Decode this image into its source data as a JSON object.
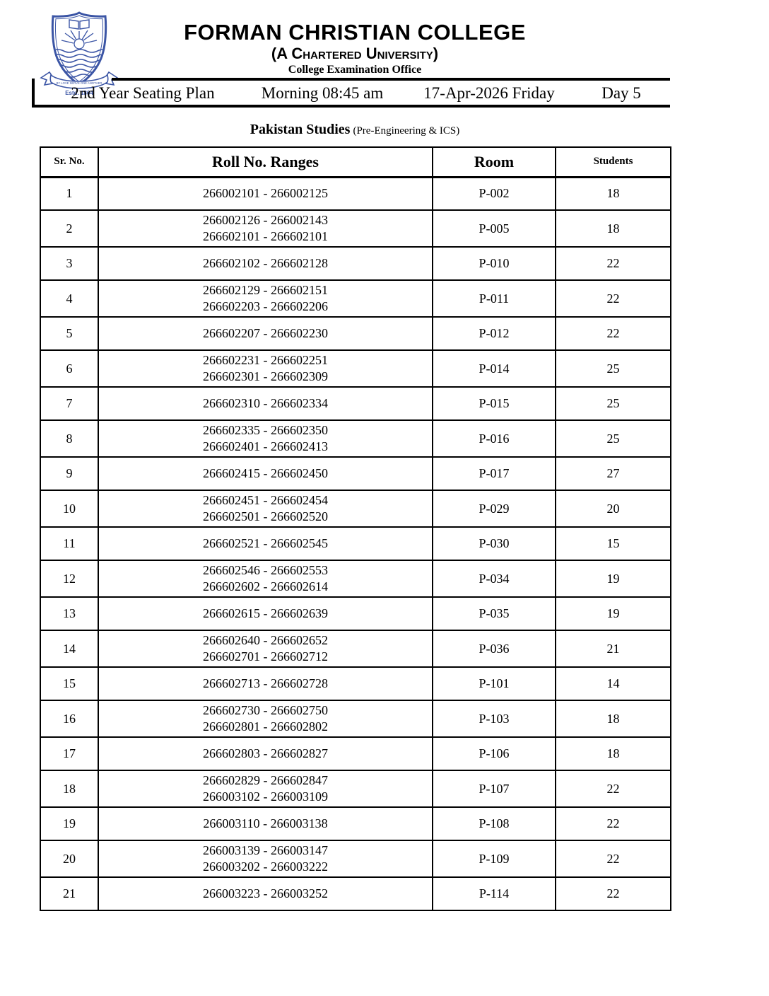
{
  "colors": {
    "logo_blue": "#3b55a5",
    "ink": "#000000"
  },
  "header": {
    "college_name": "FORMAN CHRISTIAN COLLEGE",
    "subtitle": "(A Chartered University)",
    "office": "College Examination Office",
    "logo": {
      "motto": "By Love Serve One Another",
      "estd": "Estd. 1864"
    }
  },
  "info_bar": {
    "plan": "2nd Year Seating Plan",
    "time": "Morning 08:45 am",
    "date": "17-Apr-2026 Friday",
    "day": "Day 5"
  },
  "exam": {
    "subject": "Pakistan Studies",
    "groups": "(Pre-Engineering & ICS)"
  },
  "table": {
    "headers": [
      "Sr. No.",
      "Roll No. Ranges",
      "Room",
      "Students"
    ],
    "rows": [
      {
        "sr": "1",
        "ranges": [
          "266002101 - 266002125"
        ],
        "room": "P-002",
        "students": "18"
      },
      {
        "sr": "2",
        "ranges": [
          "266002126 - 266002143",
          "266602101 - 266602101"
        ],
        "room": "P-005",
        "students": "18"
      },
      {
        "sr": "3",
        "ranges": [
          "266602102 - 266602128"
        ],
        "room": "P-010",
        "students": "22"
      },
      {
        "sr": "4",
        "ranges": [
          "266602129 - 266602151",
          "266602203 - 266602206"
        ],
        "room": "P-011",
        "students": "22"
      },
      {
        "sr": "5",
        "ranges": [
          "266602207 - 266602230"
        ],
        "room": "P-012",
        "students": "22"
      },
      {
        "sr": "6",
        "ranges": [
          "266602231 - 266602251",
          "266602301 - 266602309"
        ],
        "room": "P-014",
        "students": "25"
      },
      {
        "sr": "7",
        "ranges": [
          "266602310 - 266602334"
        ],
        "room": "P-015",
        "students": "25"
      },
      {
        "sr": "8",
        "ranges": [
          "266602335 - 266602350",
          "266602401 - 266602413"
        ],
        "room": "P-016",
        "students": "25"
      },
      {
        "sr": "9",
        "ranges": [
          "266602415 - 266602450"
        ],
        "room": "P-017",
        "students": "27"
      },
      {
        "sr": "10",
        "ranges": [
          "266602451 - 266602454",
          "266602501 - 266602520"
        ],
        "room": "P-029",
        "students": "20"
      },
      {
        "sr": "11",
        "ranges": [
          "266602521 - 266602545"
        ],
        "room": "P-030",
        "students": "15"
      },
      {
        "sr": "12",
        "ranges": [
          "266602546 - 266602553",
          "266602602 - 266602614"
        ],
        "room": "P-034",
        "students": "19"
      },
      {
        "sr": "13",
        "ranges": [
          "266602615 - 266602639"
        ],
        "room": "P-035",
        "students": "19"
      },
      {
        "sr": "14",
        "ranges": [
          "266602640 - 266602652",
          "266602701 - 266602712"
        ],
        "room": "P-036",
        "students": "21"
      },
      {
        "sr": "15",
        "ranges": [
          "266602713 - 266602728"
        ],
        "room": "P-101",
        "students": "14"
      },
      {
        "sr": "16",
        "ranges": [
          "266602730 - 266602750",
          "266602801 - 266602802"
        ],
        "room": "P-103",
        "students": "18"
      },
      {
        "sr": "17",
        "ranges": [
          "266602803 - 266602827"
        ],
        "room": "P-106",
        "students": "18"
      },
      {
        "sr": "18",
        "ranges": [
          "266602829 - 266602847",
          "266003102 - 266003109"
        ],
        "room": "P-107",
        "students": "22"
      },
      {
        "sr": "19",
        "ranges": [
          "266003110 - 266003138"
        ],
        "room": "P-108",
        "students": "22"
      },
      {
        "sr": "20",
        "ranges": [
          "266003139 - 266003147",
          "266003202 - 266003222"
        ],
        "room": "P-109",
        "students": "22"
      },
      {
        "sr": "21",
        "ranges": [
          "266003223 - 266003252"
        ],
        "room": "P-114",
        "students": "22"
      }
    ]
  }
}
